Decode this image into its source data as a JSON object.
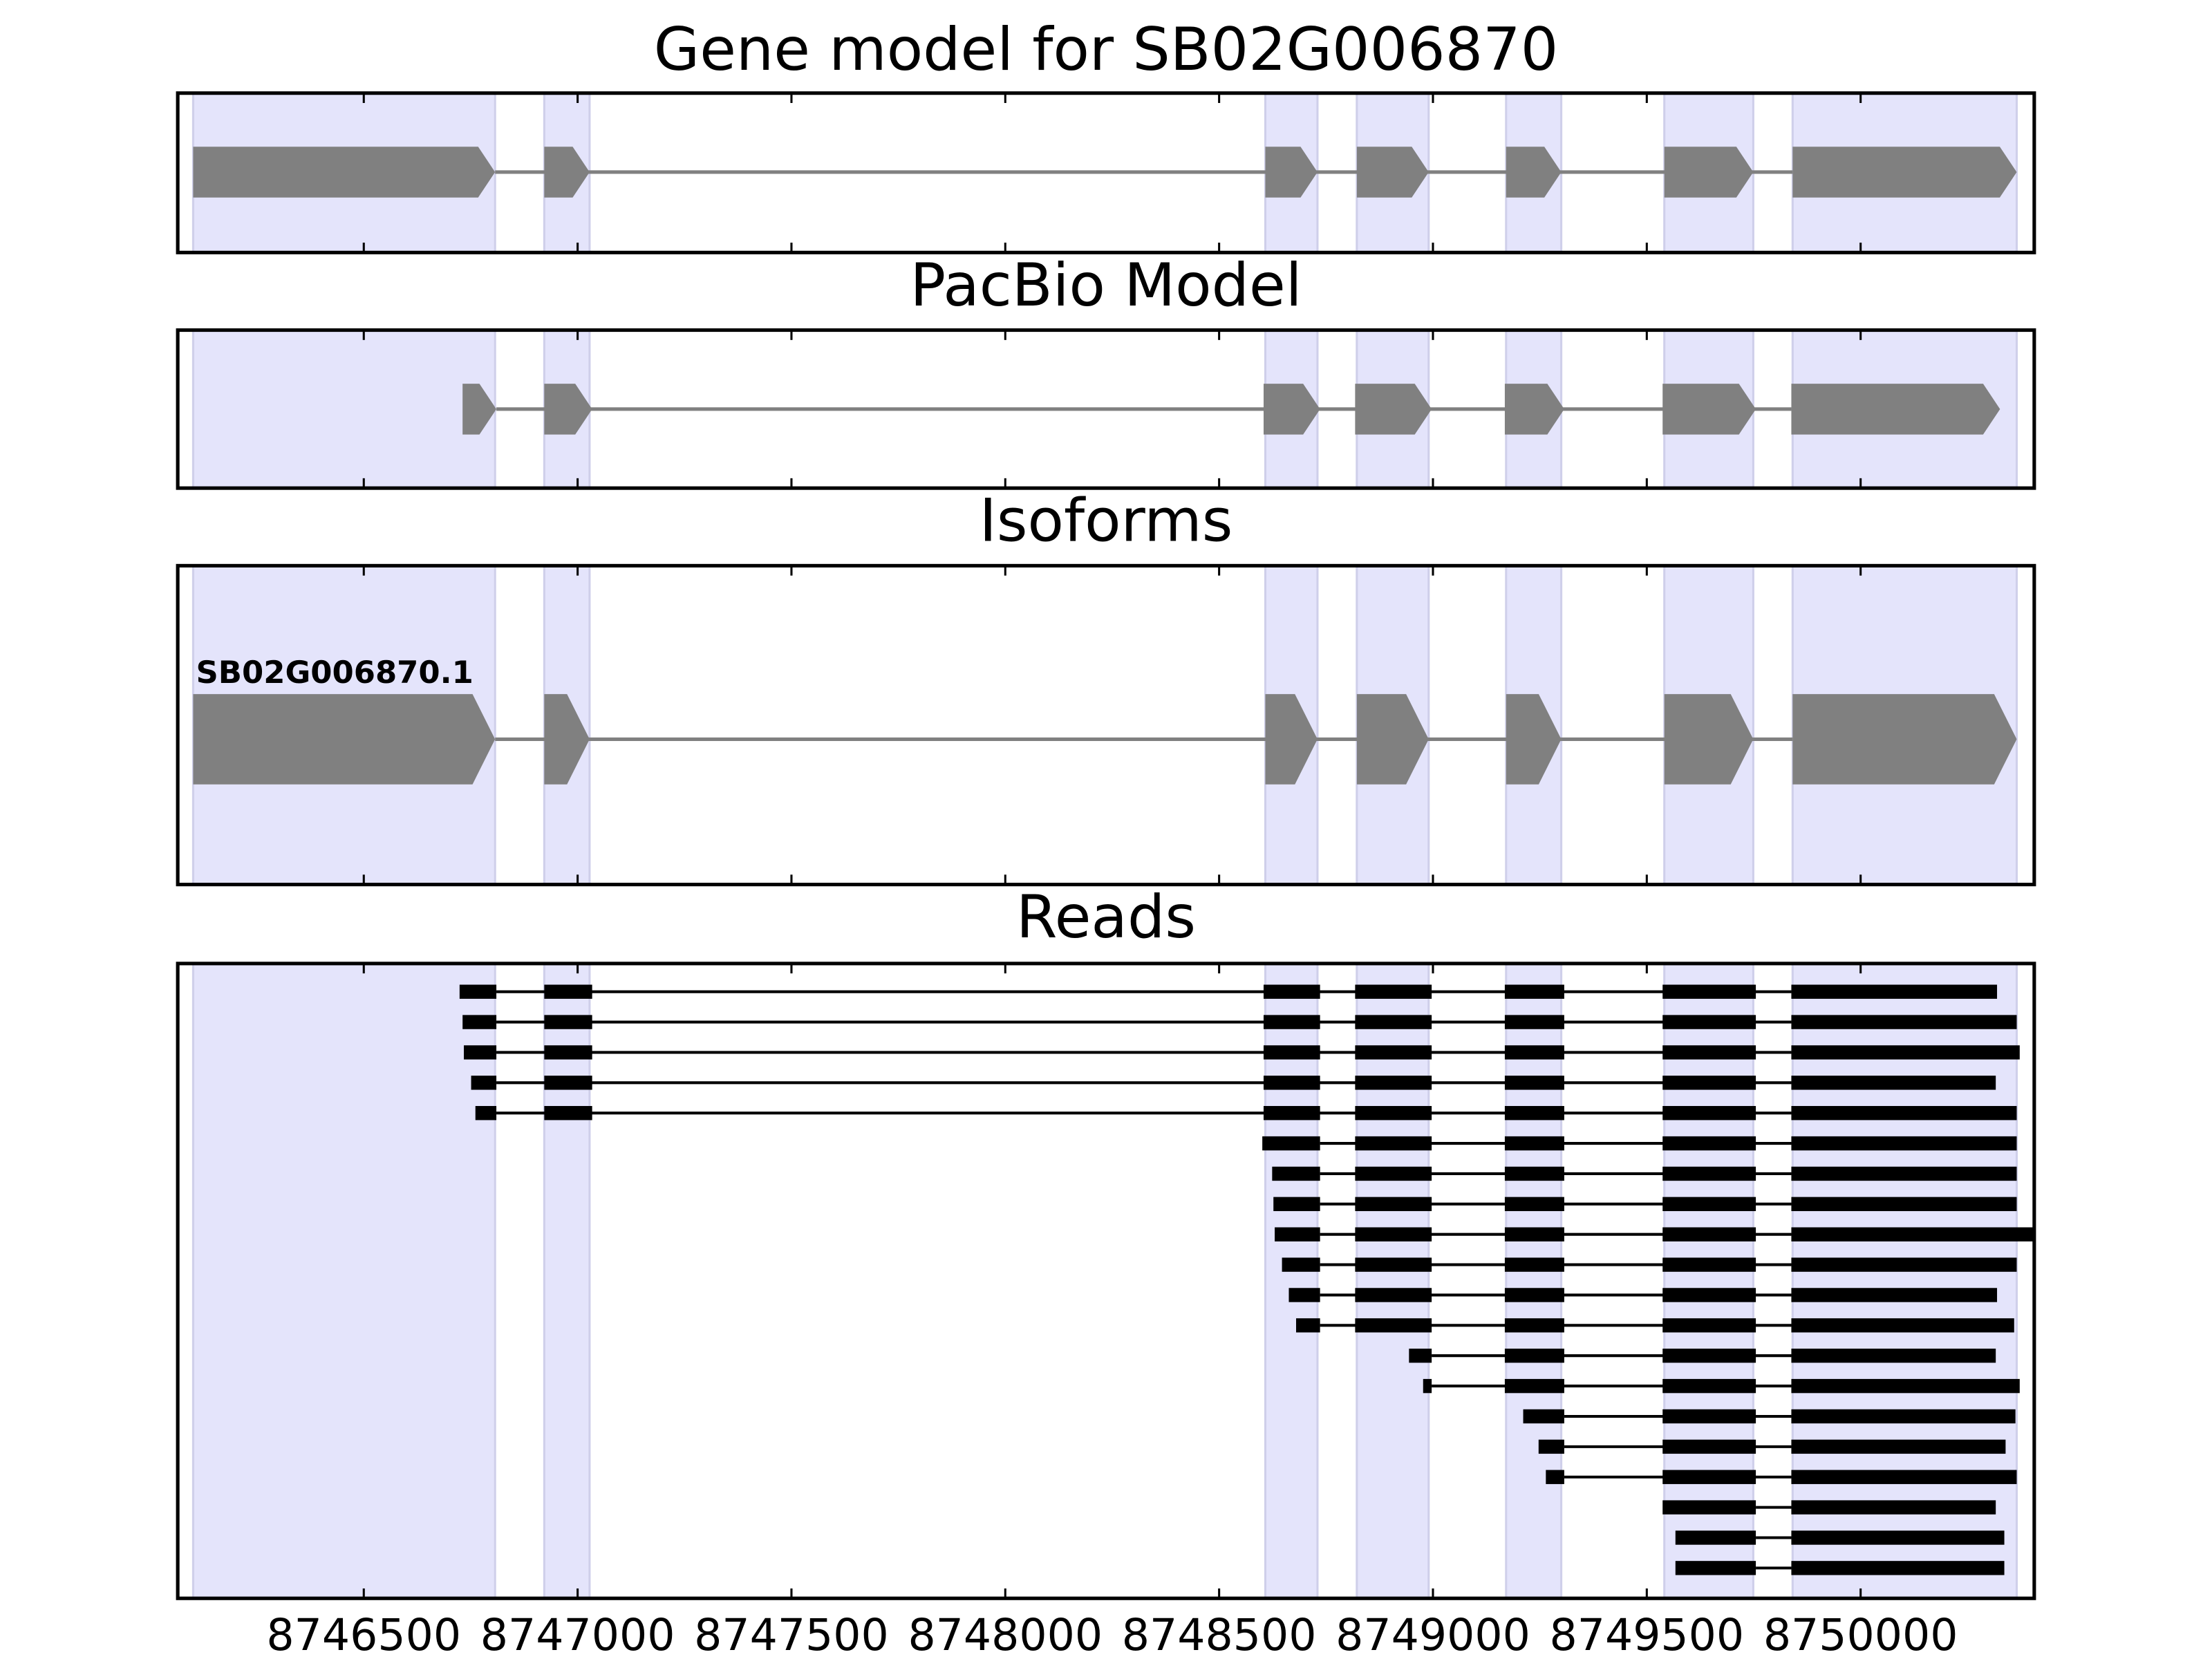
{
  "chart_data": [
    {
      "type": "gene-track",
      "title": "Gene model for SB02G006870",
      "features": [
        {
          "exons": [
            [
              8746101,
              8746807
            ],
            [
              8746922,
              8747028
            ],
            [
              8748608,
              8748730
            ],
            [
              8748822,
              8748990
            ],
            [
              8749171,
              8749300
            ],
            [
              8749541,
              8749749
            ],
            [
              8749841,
              8750365
            ]
          ]
        }
      ]
    },
    {
      "type": "gene-track",
      "title": "PacBio Model",
      "features": [
        {
          "exons": [
            [
              8746731,
              8746810
            ],
            [
              8746922,
              8747034
            ],
            [
              8748604,
              8748736
            ],
            [
              8748818,
              8748997
            ],
            [
              8749168,
              8749307
            ],
            [
              8749537,
              8749755
            ],
            [
              8749838,
              8750326
            ]
          ]
        }
      ]
    },
    {
      "type": "gene-track",
      "title": "Isoforms",
      "features": [
        {
          "label": "SB02G006870.1",
          "exons": [
            [
              8746101,
              8746807
            ],
            [
              8746922,
              8747028
            ],
            [
              8748608,
              8748730
            ],
            [
              8748822,
              8748990
            ],
            [
              8749171,
              8749300
            ],
            [
              8749541,
              8749749
            ],
            [
              8749841,
              8750365
            ]
          ]
        }
      ]
    },
    {
      "type": "reads",
      "title": "Reads",
      "xlim": [
        8746065,
        8750406
      ],
      "xticks": [
        8746500,
        8747000,
        8747500,
        8748000,
        8748500,
        8749000,
        8749500,
        8750000
      ],
      "features": [
        {
          "exons": [
            [
              8746724,
              8746810
            ],
            [
              8746922,
              8747034
            ],
            [
              8748604,
              8748736
            ],
            [
              8748818,
              8748997
            ],
            [
              8749168,
              8749307
            ],
            [
              8749537,
              8749755
            ],
            [
              8749838,
              8750319
            ]
          ]
        },
        {
          "exons": [
            [
              8746731,
              8746810
            ],
            [
              8746922,
              8747034
            ],
            [
              8748604,
              8748736
            ],
            [
              8748818,
              8748997
            ],
            [
              8749168,
              8749307
            ],
            [
              8749537,
              8749755
            ],
            [
              8749838,
              8750365
            ]
          ]
        },
        {
          "exons": [
            [
              8746734,
              8746810
            ],
            [
              8746922,
              8747034
            ],
            [
              8748604,
              8748736
            ],
            [
              8748818,
              8748997
            ],
            [
              8749168,
              8749307
            ],
            [
              8749537,
              8749755
            ],
            [
              8749838,
              8750372
            ]
          ]
        },
        {
          "exons": [
            [
              8746751,
              8746810
            ],
            [
              8746922,
              8747034
            ],
            [
              8748604,
              8748736
            ],
            [
              8748818,
              8748997
            ],
            [
              8749168,
              8749307
            ],
            [
              8749537,
              8749755
            ],
            [
              8749838,
              8750316
            ]
          ]
        },
        {
          "exons": [
            [
              8746761,
              8746810
            ],
            [
              8746922,
              8747034
            ],
            [
              8748604,
              8748736
            ],
            [
              8748818,
              8748997
            ],
            [
              8749168,
              8749307
            ],
            [
              8749537,
              8749755
            ],
            [
              8749838,
              8750365
            ]
          ]
        },
        {
          "exons": [
            [
              8748601,
              8748736
            ],
            [
              8748818,
              8748997
            ],
            [
              8749168,
              8749307
            ],
            [
              8749537,
              8749755
            ],
            [
              8749838,
              8750365
            ]
          ]
        },
        {
          "exons": [
            [
              8748624,
              8748736
            ],
            [
              8748818,
              8748997
            ],
            [
              8749168,
              8749307
            ],
            [
              8749537,
              8749755
            ],
            [
              8749838,
              8750365
            ]
          ]
        },
        {
          "exons": [
            [
              8748627,
              8748736
            ],
            [
              8748818,
              8748997
            ],
            [
              8749168,
              8749307
            ],
            [
              8749537,
              8749755
            ],
            [
              8749838,
              8750365
            ]
          ]
        },
        {
          "exons": [
            [
              8748630,
              8748736
            ],
            [
              8748818,
              8748997
            ],
            [
              8749168,
              8749307
            ],
            [
              8749537,
              8749755
            ],
            [
              8749838,
              8750405
            ]
          ]
        },
        {
          "exons": [
            [
              8748647,
              8748736
            ],
            [
              8748818,
              8748997
            ],
            [
              8749168,
              8749307
            ],
            [
              8749537,
              8749755
            ],
            [
              8749838,
              8750365
            ]
          ]
        },
        {
          "exons": [
            [
              8748663,
              8748736
            ],
            [
              8748818,
              8748997
            ],
            [
              8749168,
              8749307
            ],
            [
              8749537,
              8749755
            ],
            [
              8749838,
              8750319
            ]
          ]
        },
        {
          "exons": [
            [
              8748680,
              8748736
            ],
            [
              8748818,
              8748997
            ],
            [
              8749168,
              8749307
            ],
            [
              8749537,
              8749755
            ],
            [
              8749838,
              8750359
            ]
          ]
        },
        {
          "exons": [
            [
              8748944,
              8748997
            ],
            [
              8749168,
              8749307
            ],
            [
              8749537,
              8749755
            ],
            [
              8749838,
              8750316
            ]
          ]
        },
        {
          "exons": [
            [
              8748977,
              8748997
            ],
            [
              8749168,
              8749307
            ],
            [
              8749537,
              8749755
            ],
            [
              8749838,
              8750372
            ]
          ]
        },
        {
          "exons": [
            [
              8749211,
              8749307
            ],
            [
              8749537,
              8749755
            ],
            [
              8749838,
              8750362
            ]
          ]
        },
        {
          "exons": [
            [
              8749247,
              8749307
            ],
            [
              8749537,
              8749755
            ],
            [
              8749838,
              8750339
            ]
          ]
        },
        {
          "exons": [
            [
              8749264,
              8749307
            ],
            [
              8749537,
              8749755
            ],
            [
              8749838,
              8750365
            ]
          ]
        },
        {
          "exons": [
            [
              8749537,
              8749755
            ],
            [
              8749838,
              8750316
            ]
          ]
        },
        {
          "exons": [
            [
              8749567,
              8749755
            ],
            [
              8749838,
              8750336
            ]
          ]
        },
        {
          "exons": [
            [
              8749567,
              8749755
            ],
            [
              8749838,
              8750336
            ]
          ]
        }
      ]
    }
  ]
}
